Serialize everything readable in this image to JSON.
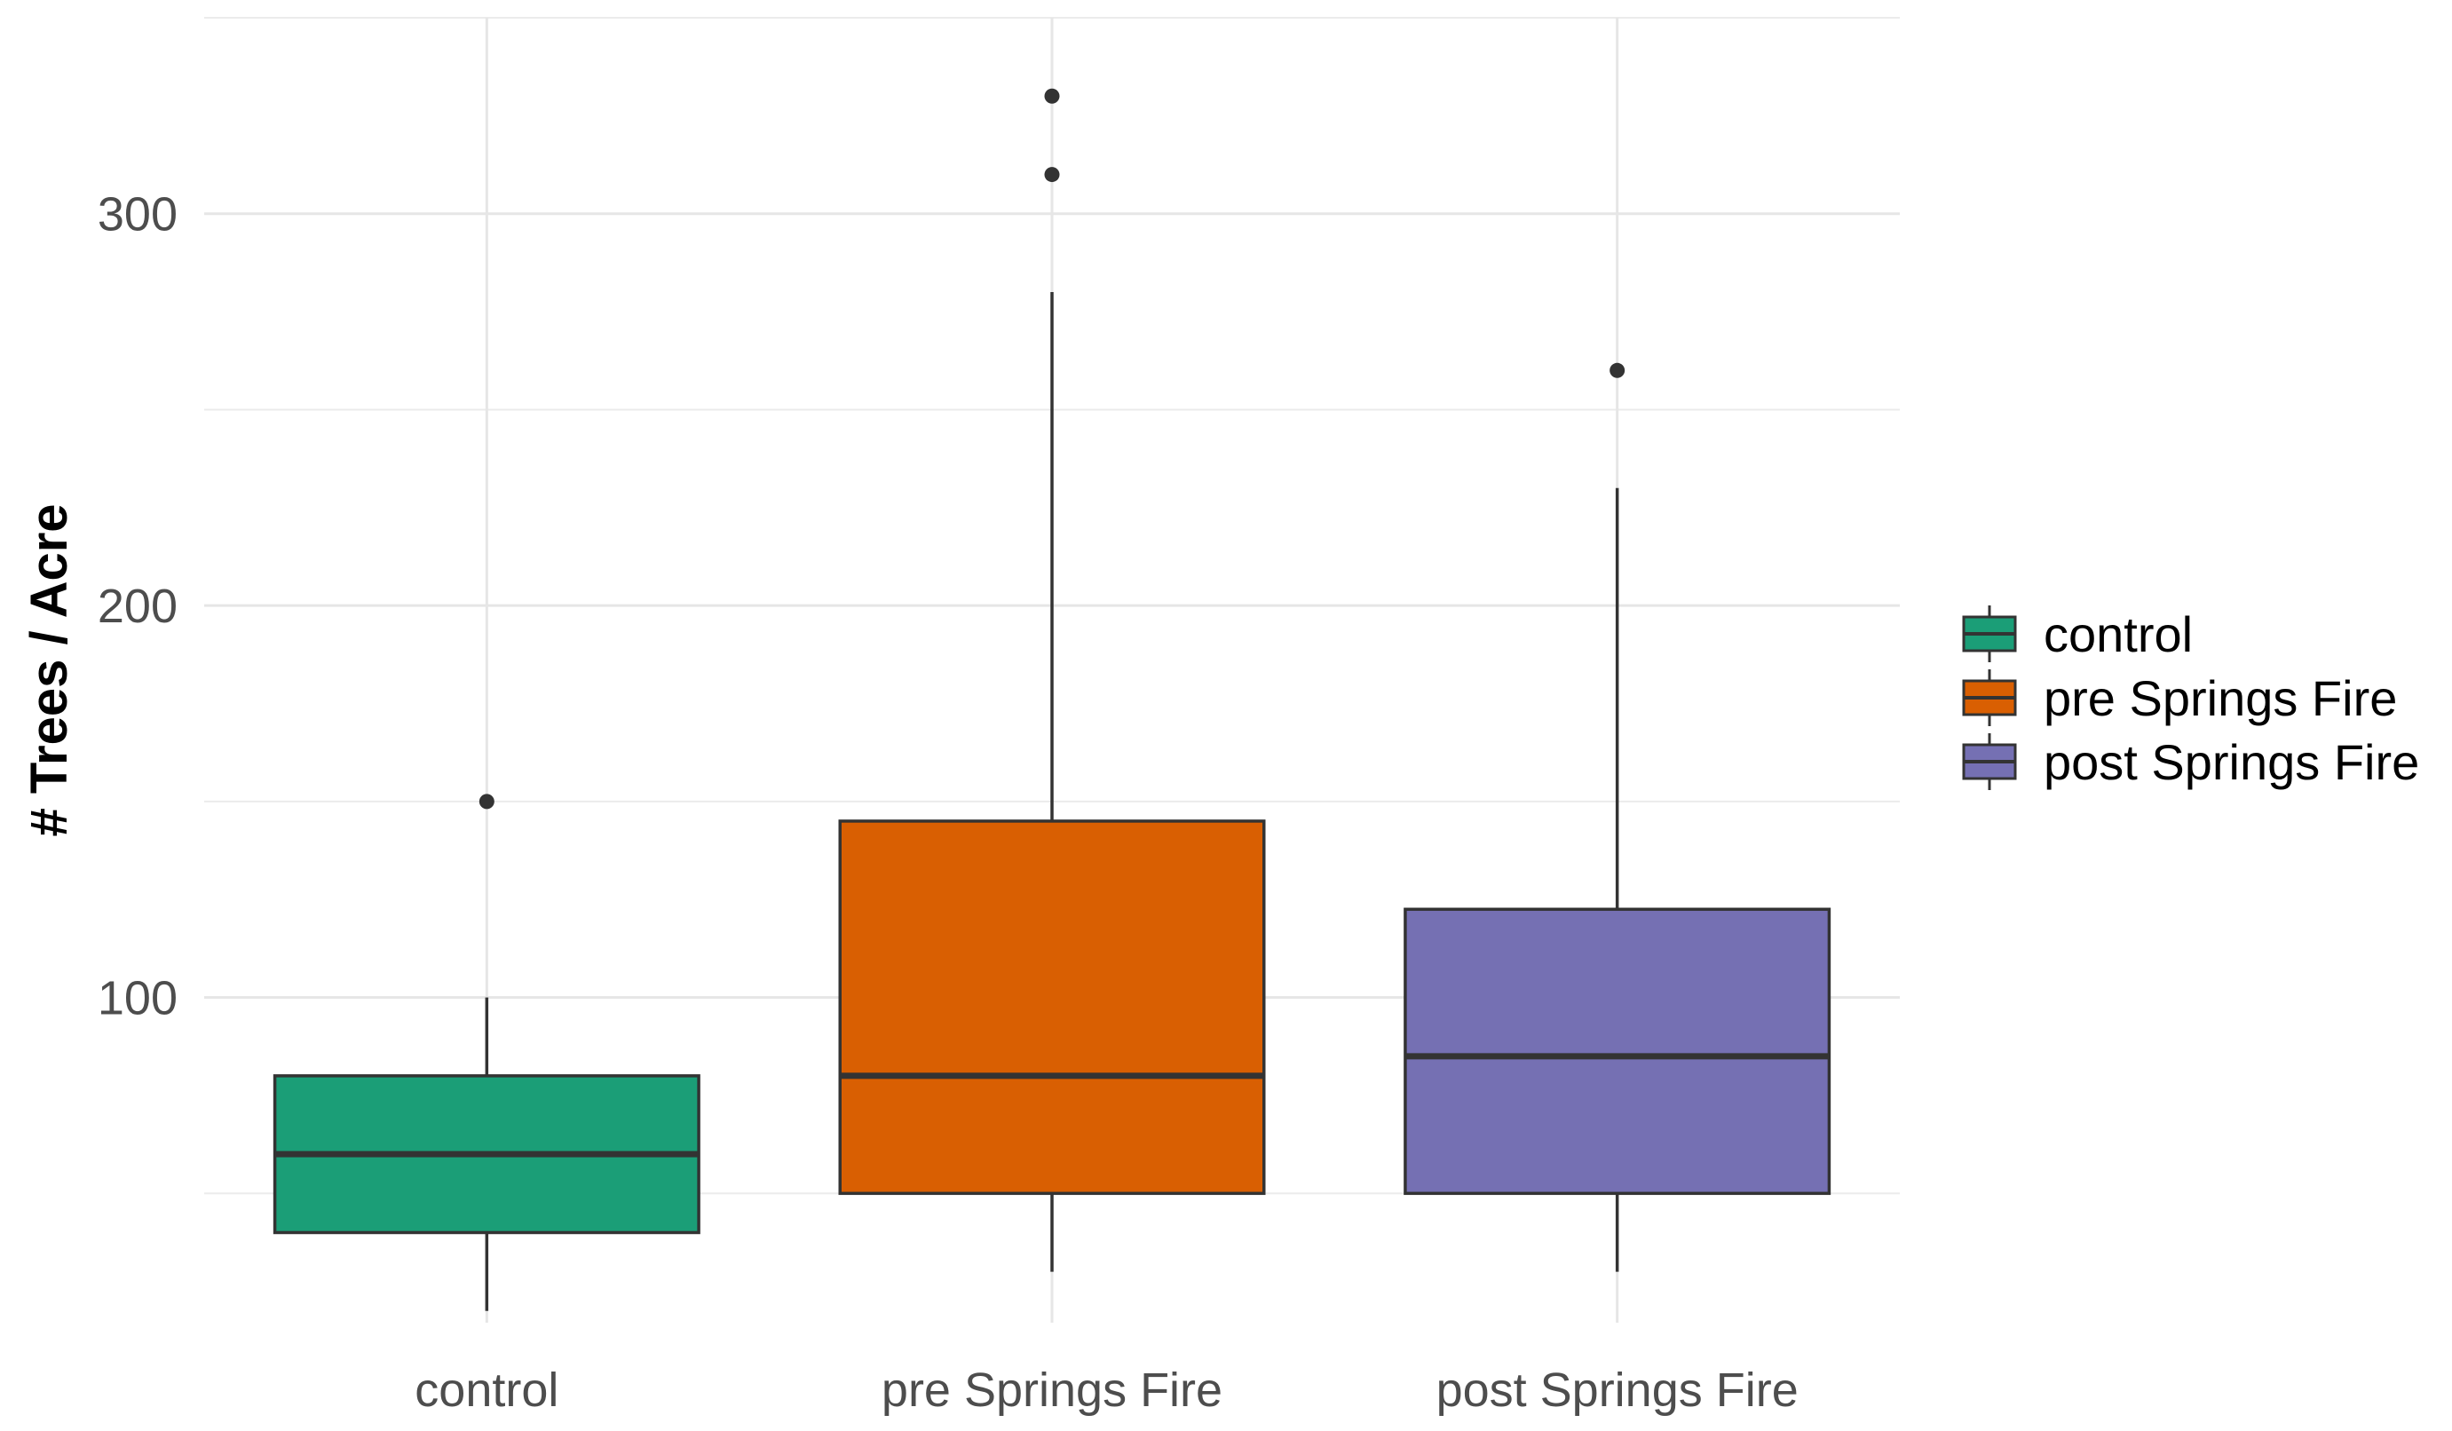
{
  "chart_data": {
    "type": "box",
    "title": "",
    "xlabel": "",
    "ylabel": "# Trees / Acre",
    "ylim": [
      17,
      350
    ],
    "y_ticks": [
      100,
      200,
      300
    ],
    "grid": true,
    "legend_position": "right",
    "categories": [
      "control",
      "pre Springs Fire",
      "post Springs Fire"
    ],
    "series": [
      {
        "name": "control",
        "color": "#1B9E77",
        "whisker_low": 20,
        "q1": 40,
        "median": 60,
        "q3": 80,
        "whisker_high": 100,
        "outliers": [
          150
        ]
      },
      {
        "name": "pre Springs Fire",
        "color": "#D95F02",
        "whisker_low": 30,
        "q1": 50,
        "median": 80,
        "q3": 145,
        "whisker_high": 280,
        "outliers": [
          310,
          330
        ]
      },
      {
        "name": "post Springs Fire",
        "color": "#7570B3",
        "whisker_low": 30,
        "q1": 50,
        "median": 85,
        "q3": 122.5,
        "whisker_high": 230,
        "outliers": [
          260
        ]
      }
    ],
    "legend": {
      "entries": [
        "control",
        "pre Springs Fire",
        "post Springs Fire"
      ]
    }
  }
}
